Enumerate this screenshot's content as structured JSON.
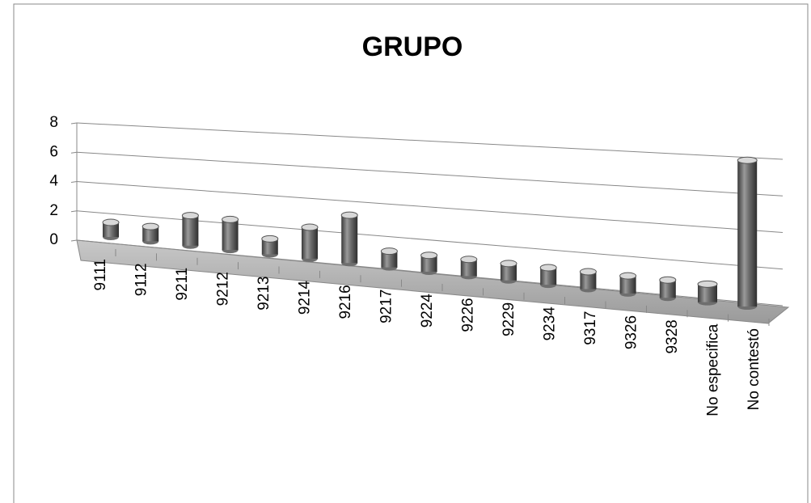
{
  "chart_data": {
    "type": "bar",
    "title": "GRUPO",
    "categories": [
      "9111",
      "9112",
      "9211",
      "9212",
      "9213",
      "9214",
      "9216",
      "9217",
      "9224",
      "9226",
      "9229",
      "9234",
      "9317",
      "9326",
      "9328",
      "No especifica",
      "No contestó"
    ],
    "values": [
      1,
      1,
      2,
      2,
      1,
      2,
      3,
      1,
      1,
      1,
      1,
      1,
      1,
      1,
      1,
      1,
      8
    ],
    "color": "#6e6e6e",
    "ylim": [
      0,
      8
    ],
    "yticks": [
      0,
      2,
      4,
      6,
      8
    ],
    "grid": true
  }
}
